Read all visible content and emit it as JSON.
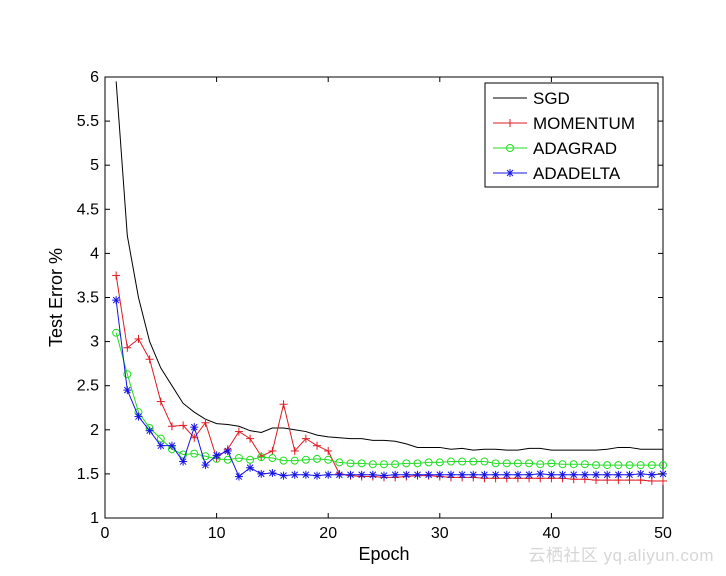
{
  "watermark": "云栖社区 yq.aliyun.com",
  "chart_data": {
    "type": "line",
    "title": "",
    "xlabel": "Epoch",
    "ylabel": "Test Error %",
    "xlim": [
      0,
      50
    ],
    "ylim": [
      1,
      6
    ],
    "xticks": [
      0,
      10,
      20,
      30,
      40,
      50
    ],
    "yticks": [
      1,
      1.5,
      2,
      2.5,
      3,
      3.5,
      4,
      4.5,
      5,
      5.5,
      6
    ],
    "grid": false,
    "legend_position": "top-right",
    "x": [
      1,
      2,
      3,
      4,
      5,
      6,
      7,
      8,
      9,
      10,
      11,
      12,
      13,
      14,
      15,
      16,
      17,
      18,
      19,
      20,
      21,
      22,
      23,
      24,
      25,
      26,
      27,
      28,
      29,
      30,
      31,
      32,
      33,
      34,
      35,
      36,
      37,
      38,
      39,
      40,
      41,
      42,
      43,
      44,
      45,
      46,
      47,
      48,
      49,
      50
    ],
    "series": [
      {
        "name": "SGD",
        "color": "#000000",
        "marker": "none",
        "values": [
          5.95,
          4.2,
          3.5,
          3.0,
          2.7,
          2.5,
          2.3,
          2.2,
          2.12,
          2.07,
          2.06,
          2.04,
          1.99,
          1.97,
          2.02,
          2.02,
          2.0,
          1.98,
          1.94,
          1.92,
          1.91,
          1.9,
          1.9,
          1.88,
          1.88,
          1.87,
          1.84,
          1.8,
          1.8,
          1.8,
          1.78,
          1.79,
          1.77,
          1.78,
          1.78,
          1.77,
          1.77,
          1.79,
          1.79,
          1.77,
          1.77,
          1.77,
          1.77,
          1.77,
          1.78,
          1.8,
          1.8,
          1.78,
          1.78,
          1.78
        ]
      },
      {
        "name": "MOMENTUM",
        "color": "#e01b22",
        "marker": "plus",
        "values": [
          3.75,
          2.93,
          3.03,
          2.8,
          2.32,
          2.04,
          2.05,
          1.91,
          2.08,
          1.68,
          1.78,
          1.98,
          1.9,
          1.7,
          1.76,
          2.29,
          1.76,
          1.9,
          1.82,
          1.76,
          1.5,
          1.48,
          1.47,
          1.47,
          1.46,
          1.46,
          1.47,
          1.48,
          1.48,
          1.47,
          1.46,
          1.46,
          1.46,
          1.45,
          1.45,
          1.45,
          1.45,
          1.45,
          1.45,
          1.45,
          1.45,
          1.44,
          1.44,
          1.43,
          1.43,
          1.43,
          1.43,
          1.43,
          1.42,
          1.42
        ]
      },
      {
        "name": "ADAGRAD",
        "color": "#22dd22",
        "marker": "circle",
        "values": [
          3.1,
          2.63,
          2.2,
          2.02,
          1.9,
          1.78,
          1.72,
          1.73,
          1.7,
          1.67,
          1.66,
          1.68,
          1.66,
          1.69,
          1.68,
          1.65,
          1.65,
          1.66,
          1.67,
          1.66,
          1.63,
          1.62,
          1.62,
          1.61,
          1.61,
          1.61,
          1.62,
          1.62,
          1.63,
          1.63,
          1.64,
          1.64,
          1.64,
          1.64,
          1.62,
          1.62,
          1.62,
          1.62,
          1.61,
          1.62,
          1.61,
          1.61,
          1.61,
          1.6,
          1.6,
          1.6,
          1.6,
          1.6,
          1.6,
          1.6
        ]
      },
      {
        "name": "ADADELTA",
        "color": "#1414e6",
        "marker": "asterisk",
        "values": [
          3.47,
          2.45,
          2.15,
          1.99,
          1.82,
          1.82,
          1.64,
          2.03,
          1.6,
          1.71,
          1.76,
          1.47,
          1.57,
          1.5,
          1.51,
          1.48,
          1.49,
          1.49,
          1.48,
          1.49,
          1.49,
          1.49,
          1.49,
          1.49,
          1.48,
          1.49,
          1.49,
          1.49,
          1.49,
          1.49,
          1.49,
          1.49,
          1.49,
          1.49,
          1.49,
          1.49,
          1.49,
          1.49,
          1.5,
          1.49,
          1.49,
          1.49,
          1.49,
          1.49,
          1.49,
          1.49,
          1.49,
          1.5,
          1.49,
          1.5
        ]
      }
    ]
  }
}
